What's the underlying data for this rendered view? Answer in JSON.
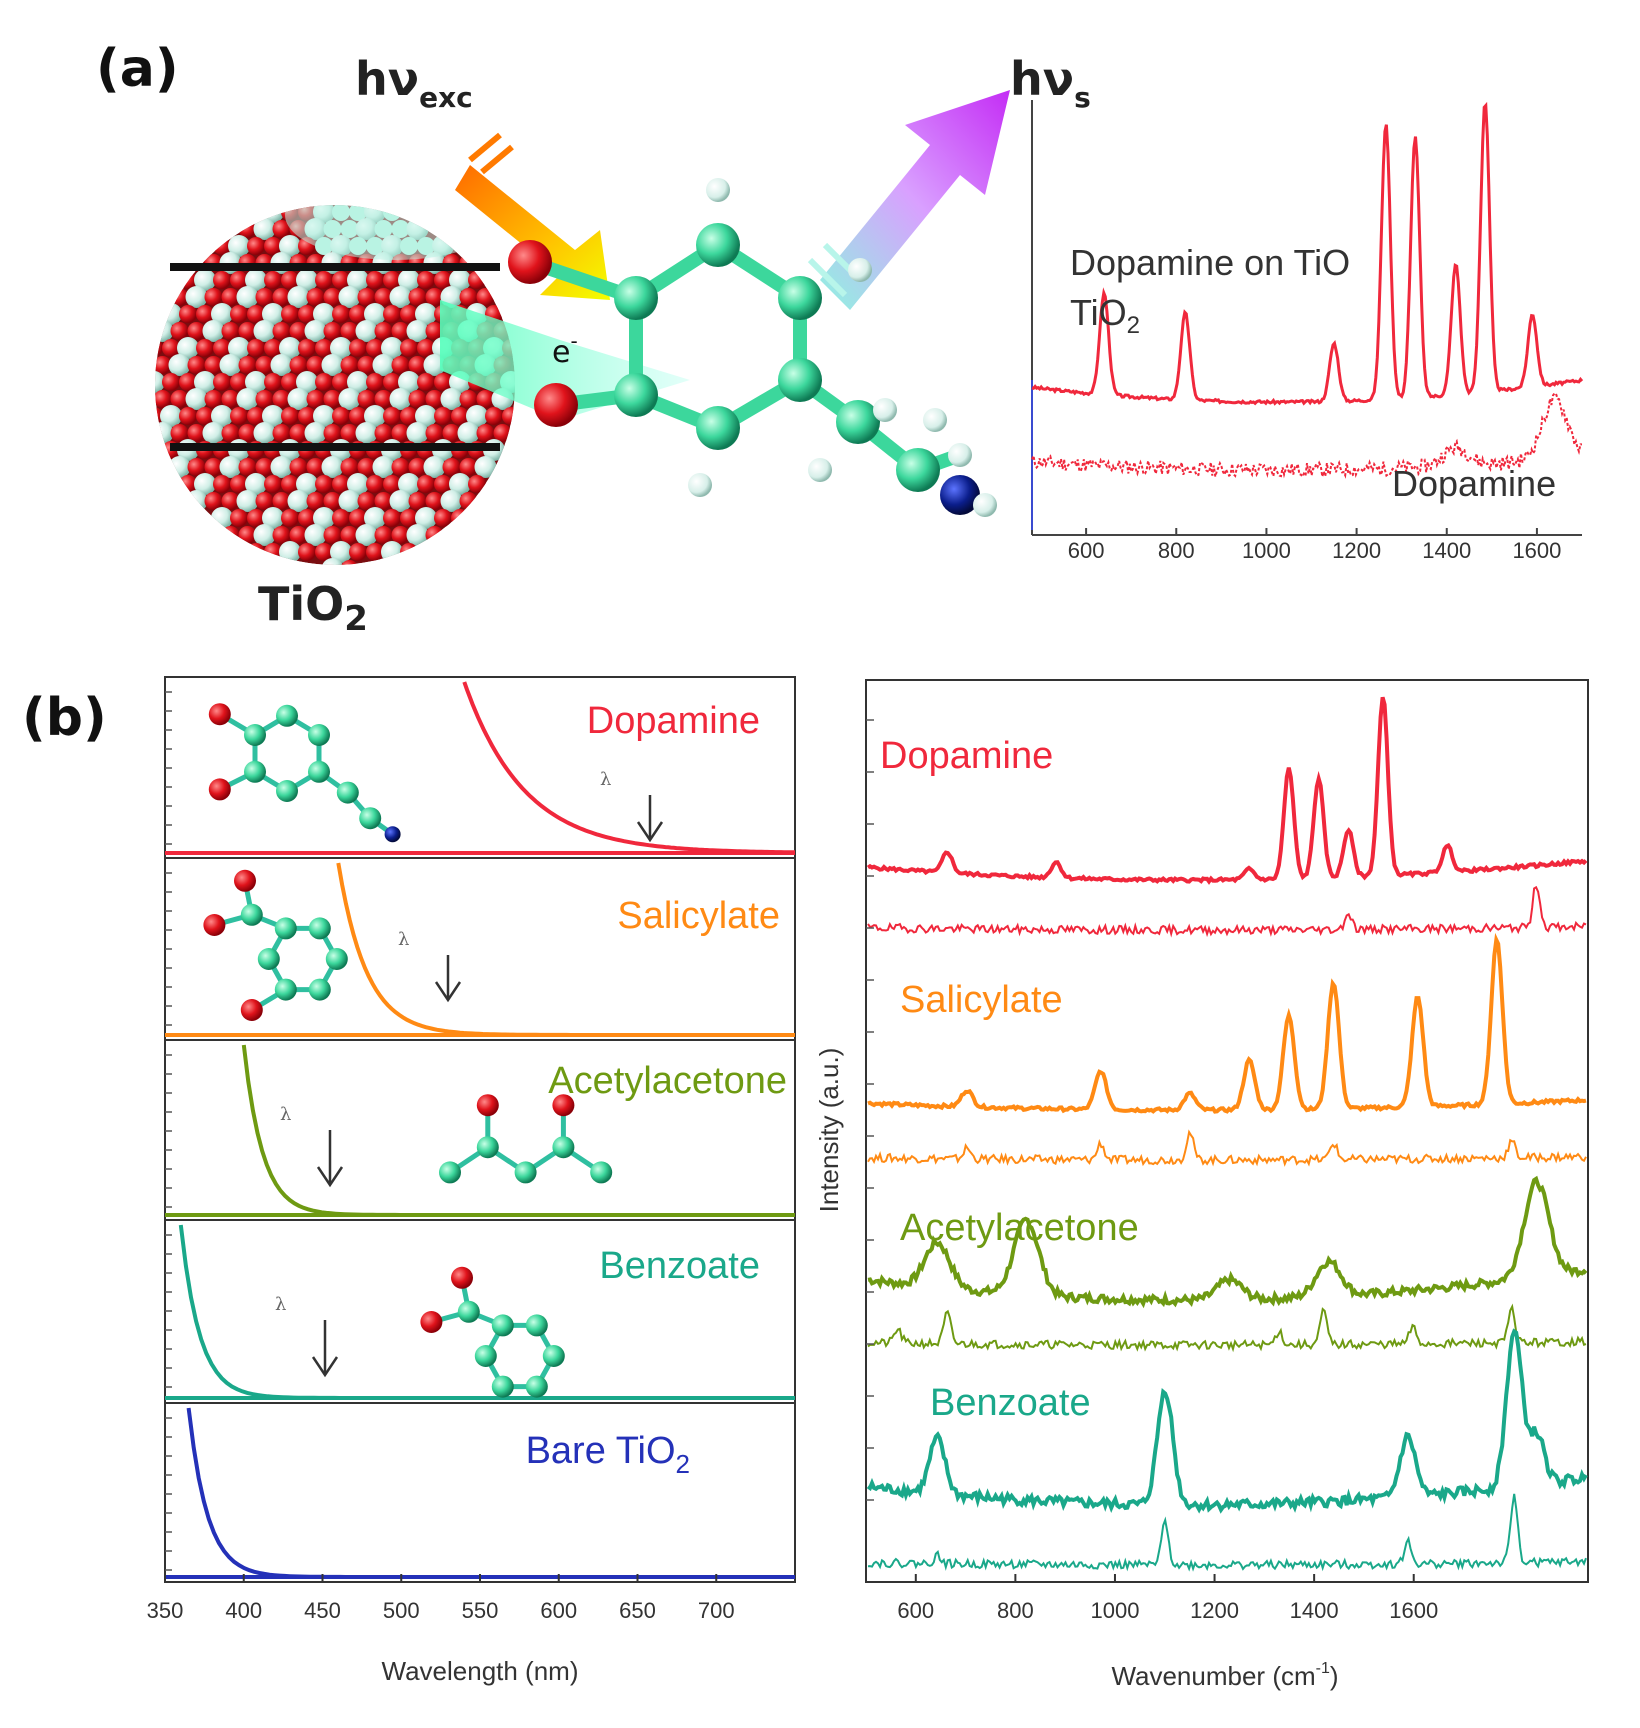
{
  "panels": {
    "a_label": "(a)",
    "b_label": "(b)"
  },
  "schematic": {
    "excitation_label": "hν",
    "excitation_sub": "exc",
    "scattered_label": "hν",
    "scattered_sub": "s",
    "particle_label": "TiO",
    "particle_sub": "2",
    "electron_label": "e",
    "electron_sup": "-"
  },
  "colors": {
    "dopamine": "#f0283c",
    "salicylate": "#ff8a14",
    "acetylacetone": "#6e9a12",
    "benzoate": "#1aa88a",
    "bare": "#2431b8",
    "oxygen": "#e0131b",
    "carbon": "#3cd79c",
    "hydrogen": "#d7efe9",
    "nitrogen": "#0b1e8c"
  },
  "chart_data": [
    {
      "type": "line",
      "panel": "a-inset",
      "xlabel": "",
      "ylabel": "",
      "xlim": [
        480,
        1700
      ],
      "x_ticks": [
        600,
        800,
        1000,
        1200,
        1400,
        1600
      ],
      "series": [
        {
          "name": "Dopamine on TiO",
          "name_sub": "2",
          "peaks": [
            [
              640,
              0.35
            ],
            [
              820,
              0.3
            ],
            [
              1150,
              0.2
            ],
            [
              1265,
              0.95
            ],
            [
              1330,
              0.9
            ],
            [
              1420,
              0.45
            ],
            [
              1485,
              1.0
            ],
            [
              1590,
              0.25
            ]
          ]
        },
        {
          "name": "Dopamine",
          "peaks": [
            [
              1420,
              0.15
            ],
            [
              1640,
              0.5
            ]
          ]
        }
      ]
    },
    {
      "type": "line",
      "panel": "b-absorption",
      "xlabel": "Wavelength (nm)",
      "xlim": [
        350,
        750
      ],
      "x_ticks": [
        350,
        400,
        450,
        500,
        550,
        600,
        650,
        700
      ],
      "excitation_symbol": "λ",
      "series": [
        {
          "name": "Dopamine",
          "onset_nm": 545,
          "excitation_nm": 630
        },
        {
          "name": "Salicylate",
          "onset_nm": 465,
          "excitation_nm": 540
        },
        {
          "name": "Acetylacetone",
          "onset_nm": 405,
          "excitation_nm": 460
        },
        {
          "name": "Benzoate",
          "onset_nm": 365,
          "excitation_nm": 460
        },
        {
          "name": "Bare TiO",
          "name_sub": "2",
          "onset_nm": 370
        }
      ]
    },
    {
      "type": "line",
      "panel": "b-raman",
      "xlabel": "Wavenumber (cm",
      "xlabel_sup": "-1",
      "xlabel_end": ")",
      "ylabel": "Intensity (a.u.)",
      "xlim": [
        500,
        1950
      ],
      "x_ticks": [
        600,
        800,
        1000,
        1200,
        1400,
        1600
      ],
      "series": [
        {
          "name": "Dopamine",
          "peaks": [
            [
              660,
              0.2
            ],
            [
              880,
              0.15
            ],
            [
              1270,
              0.1
            ],
            [
              1350,
              1.05
            ],
            [
              1410,
              0.95
            ],
            [
              1470,
              0.45
            ],
            [
              1540,
              1.7
            ],
            [
              1670,
              0.25
            ]
          ]
        },
        {
          "name": "Salicylate",
          "peaks": [
            [
              700,
              0.15
            ],
            [
              970,
              0.35
            ],
            [
              1150,
              0.15
            ],
            [
              1270,
              0.45
            ],
            [
              1350,
              0.85
            ],
            [
              1440,
              1.15
            ],
            [
              1610,
              1.0
            ],
            [
              1770,
              1.5
            ]
          ]
        },
        {
          "name": "Acetylacetone",
          "peaks": [
            [
              640,
              0.45
            ],
            [
              820,
              0.75
            ],
            [
              1230,
              0.2
            ],
            [
              1430,
              0.35
            ],
            [
              1850,
              0.95
            ]
          ]
        },
        {
          "name": "Benzoate",
          "peaks": [
            [
              640,
              0.55
            ],
            [
              1100,
              1.15
            ],
            [
              1590,
              0.6
            ],
            [
              1805,
              1.55
            ],
            [
              1850,
              0.5
            ]
          ]
        }
      ]
    }
  ]
}
